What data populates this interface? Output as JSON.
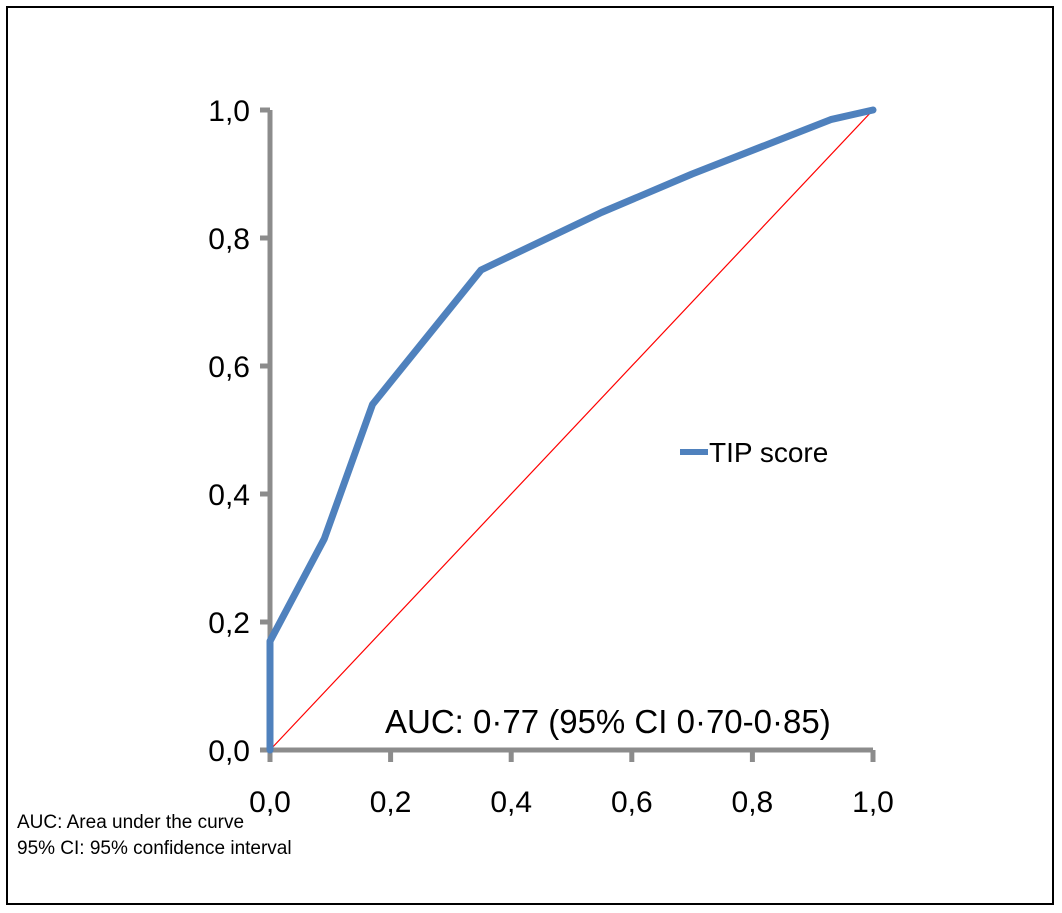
{
  "chart_data": {
    "type": "line",
    "xlim": [
      0,
      1
    ],
    "ylim": [
      0,
      1
    ],
    "x_ticks": [
      "0,0",
      "0,2",
      "0,4",
      "0,6",
      "0,8",
      "1,0"
    ],
    "y_ticks": [
      "0,0",
      "0,2",
      "0,4",
      "0,6",
      "0,8",
      "1,0"
    ],
    "grid": false,
    "legend_position": "right",
    "series": [
      {
        "name": "TIP score",
        "color": "#4f81bd",
        "x": [
          0.0,
          0.0,
          0.09,
          0.17,
          0.35,
          0.55,
          0.7,
          0.93,
          1.0
        ],
        "y": [
          0.0,
          0.17,
          0.33,
          0.54,
          0.75,
          0.84,
          0.9,
          0.985,
          1.0
        ]
      }
    ],
    "reference_line": {
      "color": "#ff0000",
      "x": [
        0,
        1
      ],
      "y": [
        0,
        1
      ]
    },
    "annotation": "AUC: 0·77 (95% CI 0·70-0·85)"
  },
  "footnotes": [
    "AUC: Area under the curve",
    "95% CI: 95% confidence interval"
  ],
  "colors": {
    "axis": "#8c8c8c",
    "curve": "#4f81bd",
    "reference": "#ff0000"
  }
}
